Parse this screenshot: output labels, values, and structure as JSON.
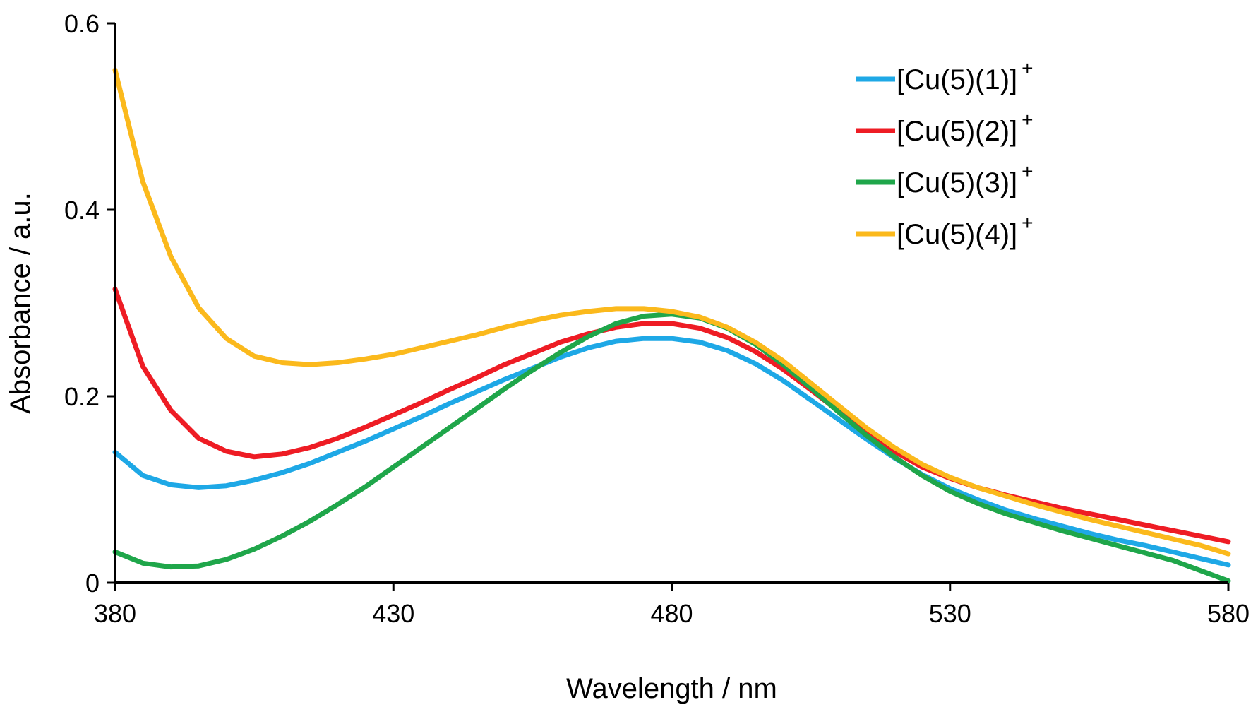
{
  "chart_data": {
    "type": "line",
    "xlabel": "Wavelength / nm",
    "ylabel": "Absorbance / a.u.",
    "xlim": [
      380,
      580
    ],
    "ylim": [
      0,
      0.6
    ],
    "x_ticks": [
      380,
      430,
      480,
      530,
      580
    ],
    "y_ticks": [
      {
        "value": 0,
        "label": "0"
      },
      {
        "value": 0.2,
        "label": "0.2"
      },
      {
        "value": 0.4,
        "label": "0.4"
      },
      {
        "value": 0.6,
        "label": "0.6"
      }
    ],
    "grid": false,
    "legend_position": "top-right",
    "x": [
      380,
      385,
      390,
      395,
      400,
      405,
      410,
      415,
      420,
      425,
      430,
      435,
      440,
      445,
      450,
      455,
      460,
      465,
      470,
      475,
      480,
      485,
      490,
      495,
      500,
      505,
      510,
      515,
      520,
      525,
      530,
      535,
      540,
      545,
      550,
      555,
      560,
      565,
      570,
      575,
      580
    ],
    "series": [
      {
        "name": "[Cu(5)(1)]",
        "superscript": "+",
        "color": "#1ea8e6",
        "values": [
          0.14,
          0.115,
          0.105,
          0.102,
          0.104,
          0.11,
          0.118,
          0.128,
          0.14,
          0.152,
          0.165,
          0.178,
          0.192,
          0.205,
          0.218,
          0.23,
          0.242,
          0.252,
          0.259,
          0.262,
          0.262,
          0.258,
          0.249,
          0.235,
          0.217,
          0.196,
          0.175,
          0.154,
          0.134,
          0.116,
          0.101,
          0.089,
          0.078,
          0.069,
          0.061,
          0.053,
          0.046,
          0.04,
          0.033,
          0.026,
          0.019
        ]
      },
      {
        "name": "[Cu(5)(2)]",
        "superscript": "+",
        "color": "#ee1c24",
        "values": [
          0.315,
          0.232,
          0.185,
          0.155,
          0.141,
          0.135,
          0.138,
          0.145,
          0.155,
          0.167,
          0.18,
          0.193,
          0.207,
          0.22,
          0.234,
          0.246,
          0.258,
          0.267,
          0.274,
          0.278,
          0.278,
          0.273,
          0.263,
          0.248,
          0.229,
          0.207,
          0.184,
          0.162,
          0.141,
          0.124,
          0.112,
          0.102,
          0.094,
          0.087,
          0.08,
          0.074,
          0.068,
          0.062,
          0.056,
          0.05,
          0.044
        ]
      },
      {
        "name": "[Cu(5)(3)]",
        "superscript": "+",
        "color": "#1fa64a",
        "values": [
          0.033,
          0.021,
          0.017,
          0.018,
          0.025,
          0.036,
          0.05,
          0.066,
          0.084,
          0.103,
          0.124,
          0.145,
          0.166,
          0.187,
          0.208,
          0.228,
          0.247,
          0.264,
          0.278,
          0.286,
          0.288,
          0.284,
          0.273,
          0.256,
          0.234,
          0.209,
          0.183,
          0.158,
          0.135,
          0.115,
          0.098,
          0.085,
          0.074,
          0.065,
          0.056,
          0.048,
          0.04,
          0.032,
          0.024,
          0.013,
          0.002
        ]
      },
      {
        "name": "[Cu(5)(4)]",
        "superscript": "+",
        "color": "#fbb91c",
        "values": [
          0.55,
          0.43,
          0.35,
          0.295,
          0.262,
          0.243,
          0.236,
          0.234,
          0.236,
          0.24,
          0.245,
          0.252,
          0.259,
          0.266,
          0.274,
          0.281,
          0.287,
          0.291,
          0.294,
          0.294,
          0.291,
          0.285,
          0.274,
          0.258,
          0.238,
          0.214,
          0.19,
          0.166,
          0.145,
          0.127,
          0.113,
          0.102,
          0.093,
          0.084,
          0.076,
          0.068,
          0.061,
          0.054,
          0.047,
          0.04,
          0.031
        ]
      }
    ]
  }
}
